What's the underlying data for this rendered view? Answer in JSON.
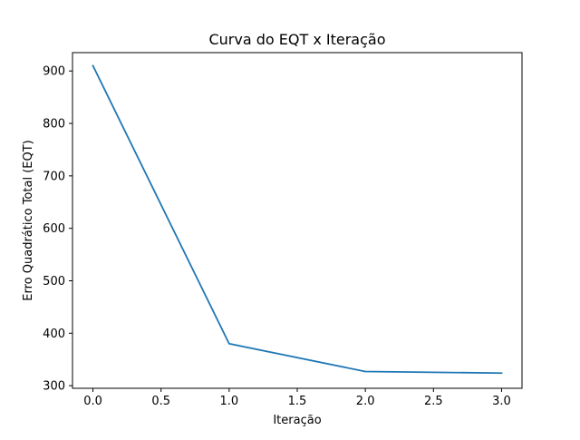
{
  "chart_data": {
    "type": "line",
    "title": "Curva do EQT x Iteração",
    "xlabel": "Iteração",
    "ylabel": "Erro Quadrático Total (EQT)",
    "xlim": [
      -0.15,
      3.15
    ],
    "ylim": [
      295,
      935
    ],
    "xticks": [
      0.0,
      0.5,
      1.0,
      1.5,
      2.0,
      2.5,
      3.0
    ],
    "xtick_labels": [
      "0.0",
      "0.5",
      "1.0",
      "1.5",
      "2.0",
      "2.5",
      "3.0"
    ],
    "yticks": [
      300,
      400,
      500,
      600,
      700,
      800,
      900
    ],
    "ytick_labels": [
      "300",
      "400",
      "500",
      "600",
      "700",
      "800",
      "900"
    ],
    "grid": false,
    "series": [
      {
        "color": "#1f77b4",
        "x": [
          0,
          1,
          2,
          3
        ],
        "y": [
          910,
          380,
          327,
          324
        ]
      }
    ]
  }
}
